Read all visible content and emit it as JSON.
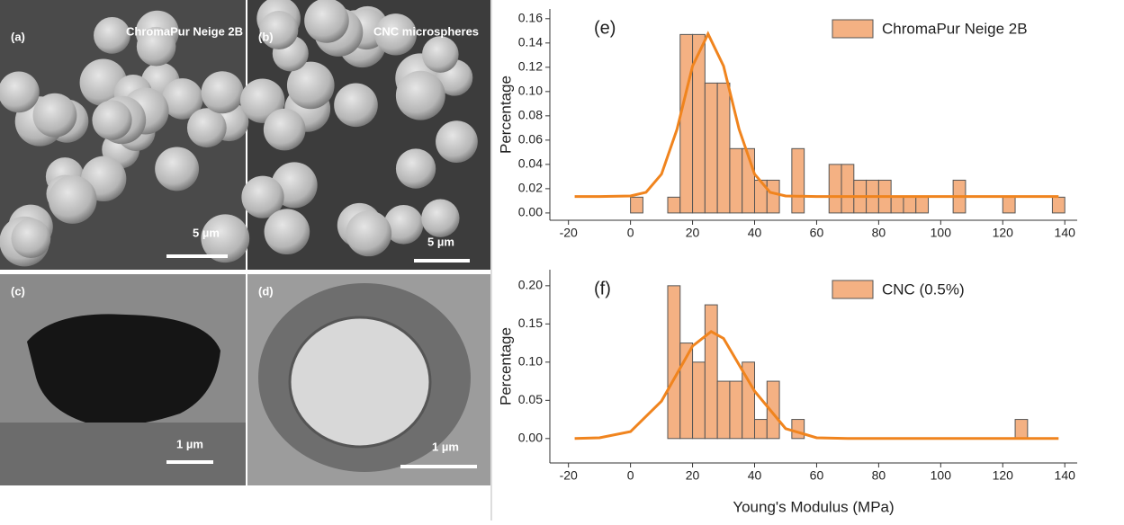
{
  "panels": [
    {
      "label": "(a)",
      "caption": "ChromaPur Neige 2B",
      "scale": "5 µm"
    },
    {
      "label": "(b)",
      "caption": "CNC microspheres",
      "scale": "5 µm"
    },
    {
      "label": "(c)",
      "scale": "1 µm"
    },
    {
      "label": "(d)",
      "scale": "1 µm"
    }
  ],
  "chart_data": [
    {
      "type": "histogram",
      "annotation": "(e)",
      "ylabel": "Percentage",
      "bins": [
        0,
        4,
        8,
        12,
        16,
        20,
        24,
        28,
        32,
        36,
        40,
        44,
        48,
        52,
        56,
        60,
        64,
        68,
        72,
        76,
        80,
        84,
        88,
        92,
        96,
        100,
        104,
        108,
        112,
        116,
        120,
        124,
        128,
        132,
        136,
        140
      ],
      "series": [
        {
          "name": "ChromaPur Neige 2B",
          "color": "#f4b183",
          "values": [
            0.013,
            0,
            0,
            0.013,
            0.147,
            0.147,
            0.107,
            0.107,
            0.053,
            0.053,
            0.027,
            0.027,
            0,
            0.053,
            0,
            0,
            0.04,
            0.04,
            0.027,
            0.027,
            0.027,
            0.013,
            0.013,
            0.013,
            0,
            0,
            0.027,
            0,
            0,
            0,
            0.013,
            0,
            0,
            0,
            0.013
          ]
        }
      ],
      "fit": {
        "color": "#f0841e",
        "x": [
          -18,
          -10,
          0,
          5,
          10,
          15,
          20,
          25,
          30,
          35,
          40,
          45,
          50,
          60,
          80,
          100,
          138
        ],
        "values": [
          0.0135,
          0.0135,
          0.014,
          0.017,
          0.032,
          0.069,
          0.121,
          0.1475,
          0.121,
          0.069,
          0.032,
          0.017,
          0.014,
          0.0135,
          0.0135,
          0.0135,
          0.0135
        ]
      },
      "legend": "upper right",
      "xlim": [
        -26,
        144
      ],
      "xticks": [
        -20,
        0,
        20,
        40,
        60,
        80,
        100,
        120,
        140
      ],
      "ylim": [
        -0.006,
        0.168
      ],
      "yticks": [
        {
          "value": 0,
          "label": "0.00"
        },
        {
          "value": 0.02,
          "label": "0.02"
        },
        {
          "value": 0.04,
          "label": "0.04"
        },
        {
          "value": 0.06,
          "label": "0.06"
        },
        {
          "value": 0.08,
          "label": "0.08"
        },
        {
          "value": 0.1,
          "label": "0.10"
        },
        {
          "value": 0.12,
          "label": "0.12"
        },
        {
          "value": 0.14,
          "label": "0.14"
        },
        {
          "value": 0.16,
          "label": "0.16"
        }
      ]
    },
    {
      "type": "histogram",
      "annotation": "(f)",
      "ylabel": "Percentage",
      "xlabel": "Young's Modulus (MPa)",
      "bins": [
        0,
        4,
        8,
        12,
        16,
        20,
        24,
        28,
        32,
        36,
        40,
        44,
        48,
        52,
        56,
        60,
        64,
        68,
        72,
        76,
        80,
        84,
        88,
        92,
        96,
        100,
        104,
        108,
        112,
        116,
        120,
        124,
        128,
        132,
        136,
        140
      ],
      "series": [
        {
          "name": "CNC (0.5%)",
          "color": "#f4b183",
          "values": [
            0,
            0,
            0,
            0.2,
            0.125,
            0.1,
            0.175,
            0.075,
            0.075,
            0.1,
            0.025,
            0.075,
            0,
            0.025,
            0,
            0,
            0,
            0,
            0,
            0,
            0,
            0,
            0,
            0,
            0,
            0,
            0,
            0,
            0,
            0,
            0,
            0.025,
            0,
            0,
            0
          ]
        }
      ],
      "fit": {
        "color": "#f0841e",
        "x": [
          -18,
          -10,
          0,
          10,
          20,
          26,
          30,
          40,
          50,
          60,
          70,
          80,
          138
        ],
        "values": [
          0.0,
          0.001,
          0.009,
          0.049,
          0.121,
          0.14,
          0.131,
          0.062,
          0.013,
          0.001,
          0.0,
          0.0,
          0.0
        ]
      },
      "legend": "upper right",
      "xlim": [
        -26,
        144
      ],
      "xticks": [
        -20,
        0,
        20,
        40,
        60,
        80,
        100,
        120,
        140
      ],
      "ylim": [
        -0.032,
        0.221
      ],
      "yticks": [
        {
          "value": 0,
          "label": "0.00"
        },
        {
          "value": 0.05,
          "label": "0.05"
        },
        {
          "value": 0.1,
          "label": "0.10"
        },
        {
          "value": 0.15,
          "label": "0.15"
        },
        {
          "value": 0.2,
          "label": "0.20"
        }
      ]
    }
  ]
}
